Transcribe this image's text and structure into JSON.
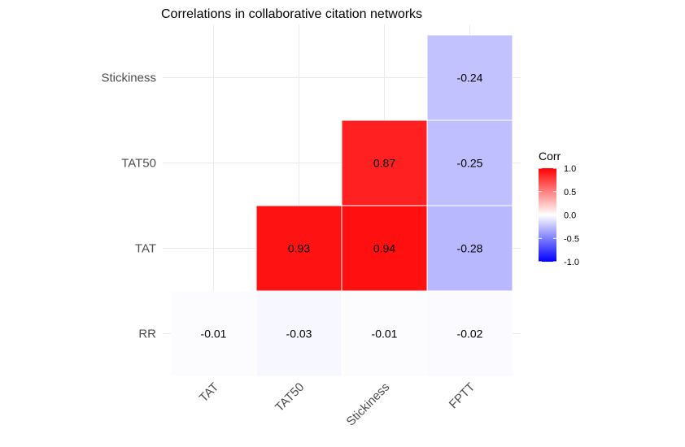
{
  "chart_data": {
    "type": "heatmap",
    "title": "Correlations in collaborative citation networks",
    "x_categories": [
      "TAT",
      "TAT50",
      "Stickiness",
      "FPTT"
    ],
    "y_categories": [
      "RR",
      "TAT",
      "TAT50",
      "Stickiness"
    ],
    "cells": [
      {
        "x": "TAT",
        "y": "RR",
        "value": -0.01,
        "label": "-0.01"
      },
      {
        "x": "TAT50",
        "y": "RR",
        "value": -0.03,
        "label": "-0.03"
      },
      {
        "x": "Stickiness",
        "y": "RR",
        "value": -0.01,
        "label": "-0.01"
      },
      {
        "x": "FPTT",
        "y": "RR",
        "value": -0.02,
        "label": "-0.02"
      },
      {
        "x": "TAT50",
        "y": "TAT",
        "value": 0.93,
        "label": "0.93"
      },
      {
        "x": "Stickiness",
        "y": "TAT",
        "value": 0.94,
        "label": "0.94"
      },
      {
        "x": "FPTT",
        "y": "TAT",
        "value": -0.28,
        "label": "-0.28"
      },
      {
        "x": "Stickiness",
        "y": "TAT50",
        "value": 0.87,
        "label": "0.87"
      },
      {
        "x": "FPTT",
        "y": "TAT50",
        "value": -0.25,
        "label": "-0.25"
      },
      {
        "x": "FPTT",
        "y": "Stickiness",
        "value": -0.24,
        "label": "-0.24"
      }
    ],
    "legend": {
      "title": "Corr",
      "ticks": [
        1.0,
        0.5,
        0.0,
        -0.5,
        -1.0
      ],
      "tick_labels": [
        "1.0",
        "0.5",
        "0.0",
        "-0.5",
        "-1.0"
      ],
      "color_low": "#0000FF",
      "color_mid": "#FFFFFF",
      "color_high": "#FF0000",
      "range": [
        -1,
        1
      ],
      "placement": "right"
    },
    "grid": true
  }
}
